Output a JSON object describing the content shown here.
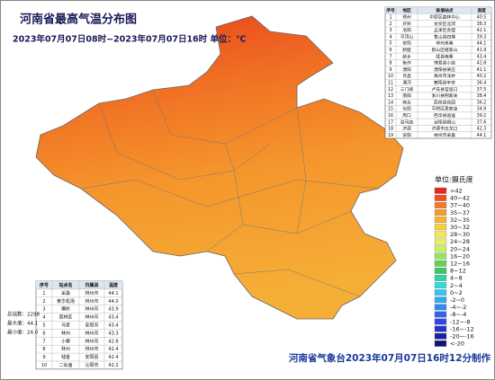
{
  "header": {
    "title": "河南省最高气温分布图",
    "subtitle": "2023年07月07日08时~2023年07月07日16时 单位：℃"
  },
  "top_table": {
    "columns": [
      "序号",
      "地区",
      "极值站点",
      "温度"
    ],
    "rows": [
      [
        "1",
        "郑州",
        "中原区森林中心",
        "40.5"
      ],
      [
        "2",
        "开封",
        "龙亭区北郊",
        "38.3"
      ],
      [
        "3",
        "洛阳",
        "孟津区会盟",
        "42.1"
      ],
      [
        "4",
        "平顶山",
        "鲁山县四棵",
        "39.3"
      ],
      [
        "5",
        "安阳",
        "林州采桑",
        "44.1"
      ],
      [
        "6",
        "鹤壁",
        "鹤山区姬家山",
        "41.9"
      ],
      [
        "7",
        "新乡",
        "辉县南寨",
        "43.4"
      ],
      [
        "8",
        "焦作",
        "博爱县小店",
        "42.8"
      ],
      [
        "9",
        "濮阳",
        "濮阳县梁庄",
        "41.1"
      ],
      [
        "10",
        "许昌",
        "禹州市浅井",
        "40.2"
      ],
      [
        "11",
        "漯河",
        "舞阳县辛安",
        "36.4"
      ],
      [
        "12",
        "三门峡",
        "卢氏县官道口",
        "37.5"
      ],
      [
        "13",
        "南阳",
        "淅川县荆紫关",
        "38.4"
      ],
      [
        "14",
        "商丘",
        "民权县花园",
        "36.2"
      ],
      [
        "15",
        "信阳",
        "平桥区吴家店",
        "34.9"
      ],
      [
        "16",
        "周口",
        "西华县逍遥",
        "39.2"
      ],
      [
        "17",
        "驻马店",
        "泌阳县铜山",
        "37.6"
      ],
      [
        "18",
        "济源",
        "济源市五龙口",
        "42.3"
      ],
      [
        "19",
        "安阳",
        "林州市采桑",
        "44.1"
      ]
    ]
  },
  "bottom_table": {
    "columns": [
      "序号",
      "站点名",
      "归属县",
      "温度"
    ],
    "rows": [
      [
        "1",
        "采桑",
        "林州市",
        "44.1"
      ],
      [
        "2",
        "黄华机场",
        "林州市",
        "44.0"
      ],
      [
        "3",
        "横岭",
        "林州市",
        "43.9"
      ],
      [
        "4",
        "原林区",
        "林州市",
        "43.4"
      ],
      [
        "5",
        "马家",
        "安阳市",
        "43.4"
      ],
      [
        "6",
        "林州",
        "林州市",
        "43.3"
      ],
      [
        "7",
        "小寨",
        "林州市",
        "42.8"
      ],
      [
        "8",
        "林州",
        "林州市",
        "42.4"
      ],
      [
        "9",
        "钱金",
        "安阳县",
        "42.4"
      ],
      [
        "10",
        "二仙庙",
        "沁阳市",
        "42.2"
      ]
    ]
  },
  "stats": [
    "总站数：2298",
    "最大值：44.1",
    "最小值：24.0"
  ],
  "legend": {
    "title": "单位:摄氏度",
    "items": [
      {
        "label": ">42",
        "color": "#e8281e"
      },
      {
        "label": "40~42",
        "color": "#f0501e"
      },
      {
        "label": "37~40",
        "color": "#f57a28"
      },
      {
        "label": "35~37",
        "color": "#f59a2d"
      },
      {
        "label": "32~35",
        "color": "#f5b432"
      },
      {
        "label": "30~32",
        "color": "#f5d03c"
      },
      {
        "label": "28~30",
        "color": "#f5e650"
      },
      {
        "label": "24~28",
        "color": "#e6f064"
      },
      {
        "label": "20~24",
        "color": "#c8f064"
      },
      {
        "label": "16~20",
        "color": "#96e65a"
      },
      {
        "label": "12~16",
        "color": "#64d250"
      },
      {
        "label": "8~12",
        "color": "#3cc864"
      },
      {
        "label": "4~8",
        "color": "#32d2aa"
      },
      {
        "label": "2~4",
        "color": "#32dcdc"
      },
      {
        "label": "0~2",
        "color": "#32c8f0"
      },
      {
        "label": "-2~0",
        "color": "#32aaf0"
      },
      {
        "label": "-4~-2",
        "color": "#328cf0"
      },
      {
        "label": "-8~-4",
        "color": "#3264f0"
      },
      {
        "label": "-12~-8",
        "color": "#3246e6"
      },
      {
        "label": "-16~-12",
        "color": "#2832c8"
      },
      {
        "label": "-20~-16",
        "color": "#1e1ea0"
      },
      {
        "label": "<-20",
        "color": "#141478"
      }
    ]
  },
  "footer": "河南省气象台2023年07月07日16时12分制作"
}
